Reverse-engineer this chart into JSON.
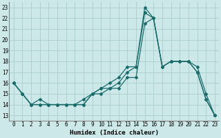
{
  "xlabel": "Humidex (Indice chaleur)",
  "bg_color": "#cce8e8",
  "grid_color": "#aacccc",
  "line_color": "#1a6b6b",
  "xlim": [
    -0.5,
    23.5
  ],
  "ylim": [
    12.5,
    23.5
  ],
  "xticks": [
    0,
    1,
    2,
    3,
    4,
    5,
    6,
    7,
    8,
    9,
    10,
    11,
    12,
    13,
    14,
    15,
    16,
    17,
    18,
    19,
    20,
    21,
    22,
    23
  ],
  "yticks": [
    13,
    14,
    15,
    16,
    17,
    18,
    19,
    20,
    21,
    22,
    23
  ],
  "line1_x": [
    0,
    1,
    2,
    3,
    4,
    5,
    6,
    7,
    8,
    9,
    10,
    11,
    12,
    13,
    14,
    15,
    16,
    17,
    18,
    19,
    20,
    21,
    22,
    23
  ],
  "line1_y": [
    16.0,
    15.0,
    14.0,
    14.0,
    14.0,
    14.0,
    14.0,
    14.0,
    14.0,
    15.0,
    15.0,
    15.5,
    15.5,
    16.5,
    16.5,
    21.5,
    22.0,
    17.5,
    18.0,
    18.0,
    18.0,
    17.0,
    14.5,
    13.0
  ],
  "line2_x": [
    0,
    1,
    2,
    3,
    4,
    5,
    6,
    7,
    8,
    9,
    10,
    11,
    12,
    13,
    14,
    15,
    16,
    17,
    18,
    19,
    20,
    21,
    22,
    23
  ],
  "line2_y": [
    16.0,
    15.0,
    14.0,
    14.0,
    14.0,
    14.0,
    14.0,
    14.0,
    14.0,
    15.0,
    15.5,
    15.5,
    16.0,
    17.0,
    17.5,
    23.0,
    22.0,
    17.5,
    18.0,
    18.0,
    18.0,
    17.0,
    14.5,
    13.0
  ],
  "line3_x": [
    0,
    1,
    2,
    3,
    4,
    5,
    6,
    7,
    8,
    9,
    10,
    11,
    12,
    13,
    14,
    15,
    16,
    17,
    18,
    19,
    20,
    21,
    22,
    23
  ],
  "line3_y": [
    16.0,
    15.0,
    14.0,
    14.5,
    14.0,
    14.0,
    14.0,
    14.0,
    14.5,
    15.0,
    15.5,
    16.0,
    16.5,
    17.5,
    17.5,
    22.5,
    22.0,
    17.5,
    18.0,
    18.0,
    18.0,
    17.5,
    15.0,
    13.0
  ],
  "tick_fontsize": 5.5,
  "xlabel_fontsize": 6.5,
  "marker_size": 2.0,
  "line_width": 0.9
}
